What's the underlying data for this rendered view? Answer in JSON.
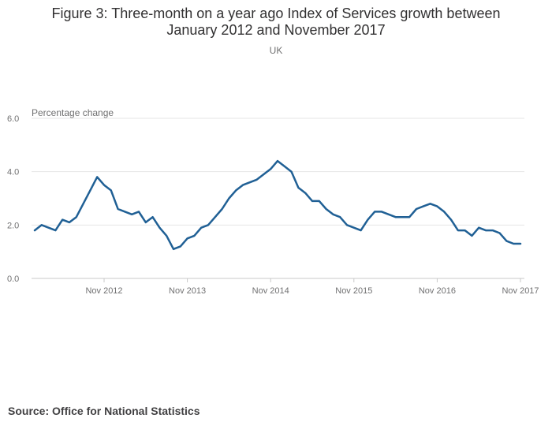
{
  "title_line1": "Figure 3: Three-month on a year ago Index of Services growth between",
  "title_line2": "January 2012 and November 2017",
  "subtitle": "UK",
  "source": "Source: Office for National Statistics",
  "colors": {
    "line": "#206095",
    "grid": "#e6e6e6",
    "axis": "#c9c9c9"
  },
  "chart_data": {
    "type": "line",
    "title": "Figure 3: Three-month on a year ago Index of Services growth between January 2012 and November 2017",
    "subtitle": "UK",
    "ylabel": "Percentage change",
    "xlabel": "",
    "ylim": [
      0,
      6
    ],
    "grid": true,
    "y_ticks": [
      "0.0",
      "2.0",
      "4.0",
      "6.0"
    ],
    "x_ticks": [
      "Nov 2012",
      "Nov 2013",
      "Nov 2014",
      "Nov 2015",
      "Nov 2016",
      "Nov 2017"
    ],
    "x_start": "Jan 2012",
    "x_end": "Nov 2017",
    "series": [
      {
        "values": [
          1.8,
          2.0,
          1.9,
          1.8,
          2.2,
          2.1,
          2.3,
          2.8,
          3.3,
          3.8,
          3.5,
          3.3,
          2.6,
          2.5,
          2.4,
          2.5,
          2.1,
          2.3,
          1.9,
          1.6,
          1.1,
          1.2,
          1.5,
          1.6,
          1.9,
          2.0,
          2.3,
          2.6,
          3.0,
          3.3,
          3.5,
          3.6,
          3.7,
          3.9,
          4.1,
          4.4,
          4.2,
          4.0,
          3.4,
          3.2,
          2.9,
          2.9,
          2.6,
          2.4,
          2.3,
          2.0,
          1.9,
          1.8,
          2.2,
          2.5,
          2.5,
          2.4,
          2.3,
          2.3,
          2.3,
          2.6,
          2.7,
          2.8,
          2.7,
          2.5,
          2.2,
          1.8,
          1.8,
          1.6,
          1.9,
          1.8,
          1.8,
          1.7,
          1.4,
          1.3,
          1.3
        ]
      }
    ]
  }
}
